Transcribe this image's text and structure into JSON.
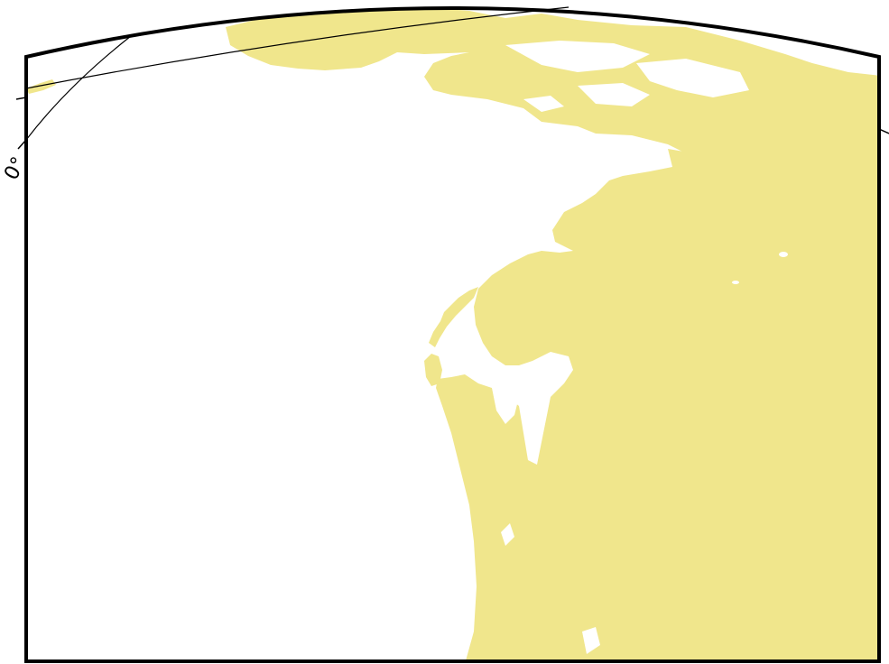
{
  "map": {
    "projection": "oblique conic",
    "land_color": "#f0e68c",
    "water_color": "#ffffff",
    "frame_color": "#000000",
    "graticule_labels": {
      "meridian_0": "0°"
    }
  }
}
